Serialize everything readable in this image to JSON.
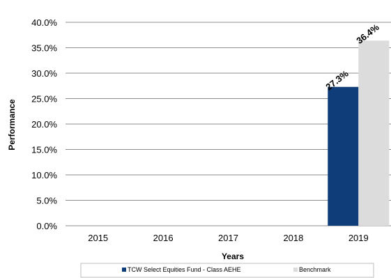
{
  "chart_data": {
    "type": "bar",
    "categories": [
      "2015",
      "2016",
      "2017",
      "2018",
      "2019"
    ],
    "series": [
      {
        "name": "TCW Select Equities Fund - Class AEHE",
        "color": "#0e3d7a",
        "values": [
          null,
          null,
          null,
          null,
          27.3
        ],
        "labels": [
          "",
          "",
          "",
          "",
          "27.3%"
        ]
      },
      {
        "name": "Benchmark",
        "color": "#dcdcdc",
        "values": [
          null,
          null,
          null,
          null,
          36.4
        ],
        "labels": [
          "",
          "",
          "",
          "",
          "36.4%"
        ]
      }
    ],
    "ylim": [
      0,
      40
    ],
    "yticks": [
      "0.0%",
      "5.0%",
      "10.0%",
      "15.0%",
      "20.0%",
      "25.0%",
      "30.0%",
      "35.0%",
      "40.0%"
    ],
    "ytick_values": [
      0,
      5,
      10,
      15,
      20,
      25,
      30,
      35,
      40
    ],
    "xlabel": "Years",
    "ylabel": "Performance",
    "grid": true,
    "legend": "bottom"
  }
}
